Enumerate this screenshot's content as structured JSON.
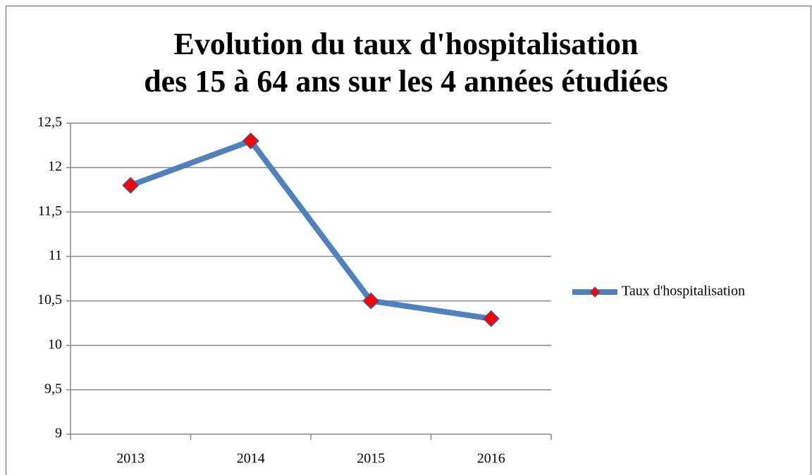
{
  "chart_data": {
    "type": "line",
    "title": "Evolution du taux d'hospitalisation\ndes 15 à 64 ans sur les 4 années étudiées",
    "categories": [
      "2013",
      "2014",
      "2015",
      "2016"
    ],
    "series": [
      {
        "name": "Taux d'hospitalisation",
        "color": "#4f81bd",
        "marker_color": "#ff0000",
        "values": [
          11.8,
          12.3,
          10.5,
          10.3
        ]
      }
    ],
    "ylim": [
      9,
      12.5
    ],
    "yticks": [
      9,
      {
        "value": 9.5,
        "label": "9,5"
      },
      10,
      {
        "value": 10.5,
        "label": "10,5"
      },
      11,
      {
        "value": 11.5,
        "label": "11,5"
      },
      12,
      {
        "value": 12.5,
        "label": "12,5"
      }
    ],
    "grid": true,
    "legend": "right"
  }
}
